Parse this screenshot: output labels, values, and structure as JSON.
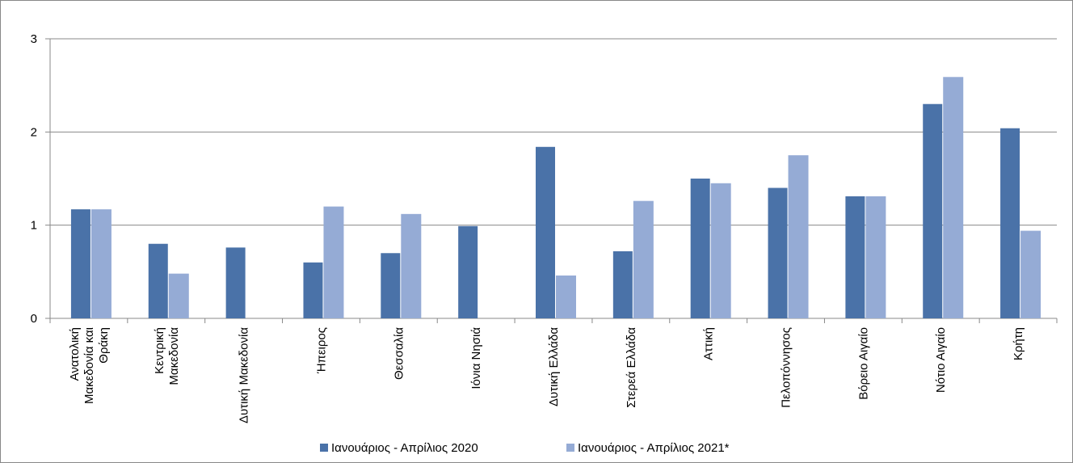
{
  "chart_data": {
    "type": "bar",
    "categories": [
      "Ανατολική Μακεδονία και Θράκη",
      "Κεντρική Μακεδονία",
      "Δυτική Μακεδονία",
      "Ήπειρος",
      "Θεσσαλία",
      "Ιόνια Νησιά",
      "Δυτική Ελλάδα",
      "Στερεά Ελλάδα",
      "Αττική",
      "Πελοπόννησος",
      "Βόρειο Αιγαίο",
      "Νότιο Αιγαίο",
      "Κρήτη"
    ],
    "series": [
      {
        "name": "Ιανουάριος - Απρίλιος 2020",
        "color": "#4a72a8",
        "values": [
          1.17,
          0.8,
          0.76,
          0.6,
          0.7,
          0.99,
          1.84,
          0.72,
          1.5,
          1.4,
          1.31,
          2.3,
          2.04
        ]
      },
      {
        "name": "Ιανουάριος - Απρίλιος 2021*",
        "color": "#95abd5",
        "values": [
          1.17,
          0.48,
          null,
          1.2,
          1.12,
          null,
          0.46,
          1.26,
          1.45,
          1.75,
          1.31,
          2.59,
          0.94
        ]
      }
    ],
    "ylim": [
      0,
      3
    ],
    "yticks": [
      0,
      1,
      2,
      3
    ],
    "grid": true,
    "legend": "bottom"
  }
}
